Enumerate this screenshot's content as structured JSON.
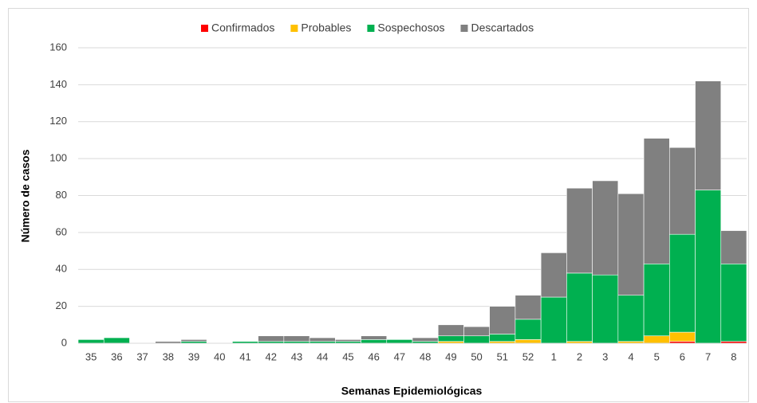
{
  "chart_data": {
    "type": "stacked_bar",
    "xlabel": "Semanas Epidemiológicas",
    "ylabel": "Número de casos",
    "categories": [
      "35",
      "36",
      "37",
      "38",
      "39",
      "40",
      "41",
      "42",
      "43",
      "44",
      "45",
      "46",
      "47",
      "48",
      "49",
      "50",
      "51",
      "52",
      "1",
      "2",
      "3",
      "4",
      "5",
      "6",
      "7",
      "8"
    ],
    "series": [
      {
        "name": "Confirmados",
        "color": "#ff0000",
        "values": [
          0,
          0,
          0,
          0,
          0,
          0,
          0,
          0,
          0,
          0,
          0,
          0,
          0,
          0,
          0,
          0,
          0,
          0,
          0,
          0,
          0,
          0,
          0,
          1,
          0,
          1
        ]
      },
      {
        "name": "Probables",
        "color": "#ffc000",
        "values": [
          0,
          0,
          0,
          0,
          0,
          0,
          0,
          0,
          0,
          0,
          0,
          0,
          0,
          0,
          1,
          0,
          1,
          2,
          0,
          1,
          0,
          1,
          4,
          5,
          0,
          0
        ]
      },
      {
        "name": "Sospechosos",
        "color": "#00b050",
        "values": [
          2,
          3,
          0,
          0,
          1,
          0,
          1,
          1,
          1,
          1,
          1,
          2,
          2,
          1,
          3,
          4,
          4,
          11,
          25,
          37,
          37,
          25,
          39,
          53,
          83,
          42
        ]
      },
      {
        "name": "Descartados",
        "color": "#808080",
        "values": [
          0,
          0,
          0,
          1,
          1,
          0,
          0,
          3,
          3,
          2,
          1,
          2,
          0,
          2,
          6,
          5,
          15,
          13,
          24,
          46,
          51,
          55,
          68,
          47,
          59,
          18
        ]
      }
    ],
    "ylim": [
      0,
      160
    ],
    "yticks": [
      0,
      20,
      40,
      60,
      80,
      100,
      120,
      140,
      160
    ],
    "grid": true
  }
}
